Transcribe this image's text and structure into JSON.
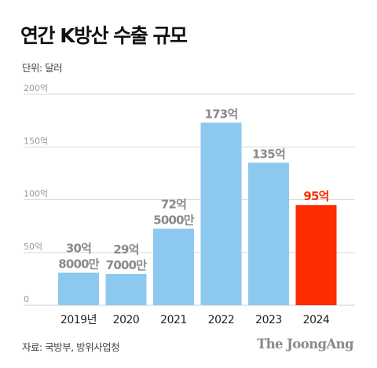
{
  "title": "연간 K방산 수출 규모",
  "unit": "단위: 달러",
  "source": "자료: 국방부, 방위사업청",
  "logo": "The JoongAng",
  "colors": {
    "bar": "#8dc9ef",
    "highlight": "#ff2d00",
    "label": "#8a8a8a",
    "grid": "#d9d9d9",
    "axis_tick": "#999999"
  },
  "chart_data": {
    "type": "bar",
    "title": "연간 K방산 수출 규모",
    "ylabel": "단위: 달러",
    "xlabel": "",
    "ylim": [
      0,
      200
    ],
    "yticks": [
      0,
      50,
      100,
      150,
      200
    ],
    "ytick_labels": [
      "0",
      "50억",
      "100억",
      "150억",
      "200억"
    ],
    "grid": true,
    "categories": [
      "2019년",
      "2020",
      "2021",
      "2022",
      "2023",
      "2024"
    ],
    "values": [
      30.8,
      29.7,
      72.5,
      173,
      135,
      95
    ],
    "data_labels": [
      [
        "30억",
        "8000만"
      ],
      [
        "29억",
        "7000만"
      ],
      [
        "72억",
        "5000만"
      ],
      [
        "173억"
      ],
      [
        "135억"
      ],
      [
        "95억"
      ]
    ],
    "highlight_index": 5
  }
}
